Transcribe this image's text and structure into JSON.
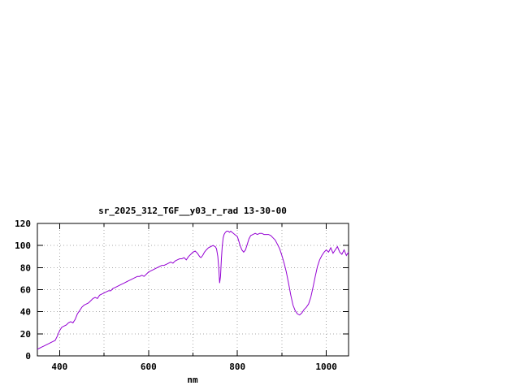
{
  "chart_data": {
    "type": "line",
    "title": "sr_2025_312_TGF__y03_r_rad 13-30-00",
    "xlabel": "nm",
    "ylabel": "",
    "xlim": [
      350,
      1050
    ],
    "ylim": [
      0,
      120
    ],
    "xticks_labeled": [
      400,
      600,
      800,
      1000
    ],
    "xticks_minor": [
      500,
      700,
      900
    ],
    "yticks": [
      0,
      20,
      40,
      60,
      80,
      100,
      120
    ],
    "grid": true,
    "legend_position": "none",
    "colors": {
      "line": "#9400d3",
      "axis": "#000000",
      "grid": "#a8a8a8",
      "text": "#000000",
      "background": "#ffffff"
    },
    "series": [
      {
        "name": "sr_2025_312_TGF__y03_r_rad",
        "points": [
          [
            350,
            6
          ],
          [
            355,
            7
          ],
          [
            360,
            8
          ],
          [
            365,
            9
          ],
          [
            370,
            10
          ],
          [
            375,
            11
          ],
          [
            380,
            12
          ],
          [
            385,
            13
          ],
          [
            390,
            14
          ],
          [
            395,
            18
          ],
          [
            400,
            23
          ],
          [
            405,
            26
          ],
          [
            410,
            27
          ],
          [
            415,
            28
          ],
          [
            420,
            30
          ],
          [
            425,
            31
          ],
          [
            430,
            30
          ],
          [
            435,
            33
          ],
          [
            440,
            38
          ],
          [
            445,
            41
          ],
          [
            450,
            44
          ],
          [
            455,
            46
          ],
          [
            460,
            47
          ],
          [
            465,
            48
          ],
          [
            470,
            50
          ],
          [
            475,
            52
          ],
          [
            480,
            53
          ],
          [
            485,
            52
          ],
          [
            490,
            55
          ],
          [
            495,
            56
          ],
          [
            500,
            57
          ],
          [
            505,
            58
          ],
          [
            510,
            59
          ],
          [
            515,
            59
          ],
          [
            520,
            61
          ],
          [
            525,
            62
          ],
          [
            530,
            63
          ],
          [
            535,
            64
          ],
          [
            540,
            65
          ],
          [
            545,
            66
          ],
          [
            550,
            67
          ],
          [
            555,
            68
          ],
          [
            560,
            69
          ],
          [
            565,
            70
          ],
          [
            570,
            71
          ],
          [
            575,
            72
          ],
          [
            580,
            72
          ],
          [
            585,
            73
          ],
          [
            590,
            72
          ],
          [
            595,
            74
          ],
          [
            600,
            76
          ],
          [
            605,
            77
          ],
          [
            610,
            78
          ],
          [
            615,
            79
          ],
          [
            620,
            80
          ],
          [
            625,
            81
          ],
          [
            630,
            82
          ],
          [
            635,
            82
          ],
          [
            640,
            83
          ],
          [
            645,
            84
          ],
          [
            650,
            85
          ],
          [
            655,
            84
          ],
          [
            660,
            86
          ],
          [
            665,
            87
          ],
          [
            670,
            88
          ],
          [
            675,
            88
          ],
          [
            680,
            89
          ],
          [
            685,
            87
          ],
          [
            690,
            90
          ],
          [
            695,
            92
          ],
          [
            700,
            94
          ],
          [
            705,
            95
          ],
          [
            710,
            93
          ],
          [
            715,
            90
          ],
          [
            718,
            89
          ],
          [
            722,
            91
          ],
          [
            726,
            94
          ],
          [
            730,
            96
          ],
          [
            735,
            98
          ],
          [
            740,
            99
          ],
          [
            745,
            100
          ],
          [
            750,
            99
          ],
          [
            753,
            97
          ],
          [
            756,
            90
          ],
          [
            758,
            80
          ],
          [
            760,
            66
          ],
          [
            762,
            72
          ],
          [
            764,
            88
          ],
          [
            766,
            100
          ],
          [
            768,
            107
          ],
          [
            770,
            110
          ],
          [
            773,
            112
          ],
          [
            776,
            113
          ],
          [
            779,
            113
          ],
          [
            782,
            112
          ],
          [
            785,
            113
          ],
          [
            788,
            112
          ],
          [
            791,
            111
          ],
          [
            794,
            110
          ],
          [
            797,
            109
          ],
          [
            800,
            108
          ],
          [
            803,
            104
          ],
          [
            806,
            100
          ],
          [
            810,
            96
          ],
          [
            814,
            94
          ],
          [
            818,
            96
          ],
          [
            822,
            101
          ],
          [
            826,
            106
          ],
          [
            830,
            109
          ],
          [
            835,
            110
          ],
          [
            840,
            111
          ],
          [
            845,
            110
          ],
          [
            850,
            111
          ],
          [
            855,
            111
          ],
          [
            860,
            110
          ],
          [
            865,
            110
          ],
          [
            870,
            110
          ],
          [
            875,
            109
          ],
          [
            880,
            107
          ],
          [
            885,
            105
          ],
          [
            890,
            101
          ],
          [
            895,
            97
          ],
          [
            900,
            91
          ],
          [
            905,
            84
          ],
          [
            910,
            76
          ],
          [
            915,
            66
          ],
          [
            920,
            55
          ],
          [
            925,
            46
          ],
          [
            930,
            41
          ],
          [
            935,
            38
          ],
          [
            940,
            37
          ],
          [
            945,
            39
          ],
          [
            950,
            42
          ],
          [
            955,
            44
          ],
          [
            960,
            47
          ],
          [
            965,
            53
          ],
          [
            970,
            62
          ],
          [
            975,
            72
          ],
          [
            980,
            81
          ],
          [
            985,
            87
          ],
          [
            990,
            91
          ],
          [
            995,
            94
          ],
          [
            1000,
            96
          ],
          [
            1005,
            94
          ],
          [
            1010,
            98
          ],
          [
            1015,
            93
          ],
          [
            1020,
            96
          ],
          [
            1025,
            99
          ],
          [
            1030,
            94
          ],
          [
            1035,
            92
          ],
          [
            1040,
            96
          ],
          [
            1045,
            91
          ],
          [
            1050,
            94
          ]
        ]
      }
    ]
  }
}
